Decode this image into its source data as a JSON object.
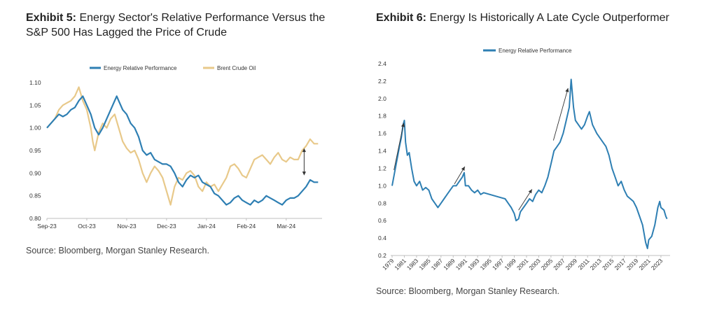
{
  "colors": {
    "energy": "#2e7fb3",
    "brent": "#e8c98a",
    "axis": "#bfbfbf",
    "arrow": "#333333"
  },
  "exhibit5": {
    "title_bold": "Exhibit 5:",
    "title_rest": " Energy Sector's Relative Performance Versus the S&P 500 Has Lagged the Price of Crude",
    "source": "Source: Bloomberg, Morgan Stanley Research."
  },
  "exhibit6": {
    "title_bold": "Exhibit 6:",
    "title_rest": " Energy Is Historically A Late Cycle Outperformer",
    "source": "Source: Bloomberg, Morgan Stanley Research."
  },
  "chart_data": [
    {
      "type": "line",
      "ylim": [
        0.8,
        1.1
      ],
      "yticks": [
        "0.80",
        "0.85",
        "0.90",
        "0.95",
        "1.00",
        "1.05",
        "1.10"
      ],
      "xticks": [
        "Sep-23",
        "Oct-23",
        "Nov-23",
        "Dec-23",
        "Jan-24",
        "Feb-24",
        "Mar-24"
      ],
      "xlim_months": [
        0,
        6.9
      ],
      "legend": "top",
      "series": [
        {
          "name": "Energy Relative Performance",
          "color": "#2e7fb3",
          "points": [
            [
              0,
              1.0
            ],
            [
              0.1,
              1.01
            ],
            [
              0.2,
              1.02
            ],
            [
              0.3,
              1.03
            ],
            [
              0.4,
              1.025
            ],
            [
              0.5,
              1.03
            ],
            [
              0.6,
              1.04
            ],
            [
              0.7,
              1.045
            ],
            [
              0.8,
              1.06
            ],
            [
              0.9,
              1.07
            ],
            [
              1.0,
              1.05
            ],
            [
              1.1,
              1.03
            ],
            [
              1.2,
              1.0
            ],
            [
              1.3,
              0.985
            ],
            [
              1.4,
              1.0
            ],
            [
              1.5,
              1.02
            ],
            [
              1.6,
              1.04
            ],
            [
              1.7,
              1.06
            ],
            [
              1.75,
              1.07
            ],
            [
              1.8,
              1.06
            ],
            [
              1.9,
              1.04
            ],
            [
              2.0,
              1.03
            ],
            [
              2.1,
              1.01
            ],
            [
              2.2,
              1.0
            ],
            [
              2.3,
              0.98
            ],
            [
              2.4,
              0.95
            ],
            [
              2.5,
              0.94
            ],
            [
              2.6,
              0.945
            ],
            [
              2.7,
              0.93
            ],
            [
              2.8,
              0.925
            ],
            [
              2.9,
              0.92
            ],
            [
              3.0,
              0.92
            ],
            [
              3.1,
              0.915
            ],
            [
              3.2,
              0.9
            ],
            [
              3.3,
              0.88
            ],
            [
              3.4,
              0.87
            ],
            [
              3.5,
              0.885
            ],
            [
              3.6,
              0.895
            ],
            [
              3.7,
              0.89
            ],
            [
              3.8,
              0.895
            ],
            [
              3.9,
              0.88
            ],
            [
              4.0,
              0.875
            ],
            [
              4.1,
              0.87
            ],
            [
              4.2,
              0.855
            ],
            [
              4.3,
              0.85
            ],
            [
              4.4,
              0.84
            ],
            [
              4.5,
              0.83
            ],
            [
              4.6,
              0.835
            ],
            [
              4.7,
              0.845
            ],
            [
              4.8,
              0.85
            ],
            [
              4.9,
              0.84
            ],
            [
              5.0,
              0.835
            ],
            [
              5.1,
              0.83
            ],
            [
              5.2,
              0.84
            ],
            [
              5.3,
              0.835
            ],
            [
              5.4,
              0.84
            ],
            [
              5.5,
              0.85
            ],
            [
              5.6,
              0.845
            ],
            [
              5.7,
              0.84
            ],
            [
              5.8,
              0.835
            ],
            [
              5.9,
              0.83
            ],
            [
              6.0,
              0.84
            ],
            [
              6.1,
              0.845
            ],
            [
              6.2,
              0.845
            ],
            [
              6.3,
              0.85
            ],
            [
              6.4,
              0.86
            ],
            [
              6.5,
              0.87
            ],
            [
              6.6,
              0.885
            ],
            [
              6.7,
              0.88
            ],
            [
              6.8,
              0.88
            ]
          ]
        },
        {
          "name": "Brent Crude Oil",
          "color": "#e8c98a",
          "points": [
            [
              0,
              1.0
            ],
            [
              0.1,
              1.01
            ],
            [
              0.2,
              1.02
            ],
            [
              0.3,
              1.04
            ],
            [
              0.4,
              1.05
            ],
            [
              0.5,
              1.055
            ],
            [
              0.6,
              1.06
            ],
            [
              0.7,
              1.07
            ],
            [
              0.8,
              1.09
            ],
            [
              0.9,
              1.06
            ],
            [
              1.0,
              1.04
            ],
            [
              1.1,
              1.0
            ],
            [
              1.15,
              0.97
            ],
            [
              1.2,
              0.95
            ],
            [
              1.3,
              0.99
            ],
            [
              1.4,
              1.01
            ],
            [
              1.5,
              1.0
            ],
            [
              1.6,
              1.02
            ],
            [
              1.7,
              1.03
            ],
            [
              1.8,
              1.0
            ],
            [
              1.9,
              0.97
            ],
            [
              2.0,
              0.955
            ],
            [
              2.1,
              0.945
            ],
            [
              2.2,
              0.95
            ],
            [
              2.3,
              0.93
            ],
            [
              2.4,
              0.9
            ],
            [
              2.5,
              0.88
            ],
            [
              2.6,
              0.9
            ],
            [
              2.7,
              0.915
            ],
            [
              2.8,
              0.905
            ],
            [
              2.9,
              0.89
            ],
            [
              3.0,
              0.86
            ],
            [
              3.1,
              0.83
            ],
            [
              3.2,
              0.87
            ],
            [
              3.3,
              0.89
            ],
            [
              3.4,
              0.885
            ],
            [
              3.5,
              0.9
            ],
            [
              3.6,
              0.905
            ],
            [
              3.7,
              0.895
            ],
            [
              3.8,
              0.87
            ],
            [
              3.9,
              0.86
            ],
            [
              4.0,
              0.88
            ],
            [
              4.1,
              0.87
            ],
            [
              4.2,
              0.875
            ],
            [
              4.3,
              0.86
            ],
            [
              4.4,
              0.875
            ],
            [
              4.5,
              0.89
            ],
            [
              4.6,
              0.915
            ],
            [
              4.7,
              0.92
            ],
            [
              4.8,
              0.91
            ],
            [
              4.9,
              0.895
            ],
            [
              5.0,
              0.89
            ],
            [
              5.1,
              0.91
            ],
            [
              5.2,
              0.93
            ],
            [
              5.3,
              0.935
            ],
            [
              5.4,
              0.94
            ],
            [
              5.5,
              0.93
            ],
            [
              5.6,
              0.92
            ],
            [
              5.7,
              0.935
            ],
            [
              5.8,
              0.945
            ],
            [
              5.9,
              0.93
            ],
            [
              6.0,
              0.925
            ],
            [
              6.1,
              0.935
            ],
            [
              6.2,
              0.93
            ],
            [
              6.3,
              0.93
            ],
            [
              6.4,
              0.95
            ],
            [
              6.5,
              0.96
            ],
            [
              6.6,
              0.975
            ],
            [
              6.7,
              0.965
            ],
            [
              6.8,
              0.965
            ]
          ]
        }
      ],
      "annotation": {
        "type": "double-arrow",
        "x_month": 6.45,
        "y_from": 0.895,
        "y_to": 0.955
      }
    },
    {
      "type": "line",
      "ylim": [
        0.2,
        2.4
      ],
      "yticks": [
        "0.2",
        "0.4",
        "0.6",
        "0.8",
        "1.0",
        "1.2",
        "1.4",
        "1.6",
        "1.8",
        "2.0",
        "2.2",
        "2.4"
      ],
      "xlim": [
        1979,
        2024.5
      ],
      "xticks": [
        "1979",
        "1981",
        "1983",
        "1985",
        "1987",
        "1989",
        "1991",
        "1993",
        "1995",
        "1997",
        "1999",
        "2001",
        "2003",
        "2005",
        "2007",
        "2009",
        "2011",
        "2013",
        "2015",
        "2017",
        "2019",
        "2021",
        "2023"
      ],
      "legend": "top",
      "series": [
        {
          "name": "Energy Relative Performance",
          "color": "#2e7fb3",
          "points": [
            [
              1979,
              1.0
            ],
            [
              1979.4,
              1.15
            ],
            [
              1979.8,
              1.3
            ],
            [
              1980.2,
              1.45
            ],
            [
              1980.5,
              1.55
            ],
            [
              1980.8,
              1.7
            ],
            [
              1981.0,
              1.75
            ],
            [
              1981.2,
              1.5
            ],
            [
              1981.5,
              1.35
            ],
            [
              1981.8,
              1.38
            ],
            [
              1982.2,
              1.2
            ],
            [
              1982.6,
              1.05
            ],
            [
              1983.0,
              1.0
            ],
            [
              1983.5,
              1.05
            ],
            [
              1984.0,
              0.95
            ],
            [
              1984.5,
              0.98
            ],
            [
              1985.0,
              0.95
            ],
            [
              1985.5,
              0.85
            ],
            [
              1986.0,
              0.8
            ],
            [
              1986.5,
              0.75
            ],
            [
              1987.0,
              0.8
            ],
            [
              1987.5,
              0.85
            ],
            [
              1988.0,
              0.9
            ],
            [
              1988.5,
              0.95
            ],
            [
              1989.0,
              1.0
            ],
            [
              1989.5,
              1.0
            ],
            [
              1990.0,
              1.05
            ],
            [
              1990.5,
              1.1
            ],
            [
              1990.8,
              1.15
            ],
            [
              1991.0,
              1.0
            ],
            [
              1991.5,
              1.0
            ],
            [
              1992.0,
              0.95
            ],
            [
              1992.5,
              0.92
            ],
            [
              1993.0,
              0.95
            ],
            [
              1993.5,
              0.9
            ],
            [
              1994.0,
              0.92
            ],
            [
              1995.0,
              0.9
            ],
            [
              1996.0,
              0.88
            ],
            [
              1997.0,
              0.86
            ],
            [
              1997.5,
              0.85
            ],
            [
              1998.0,
              0.8
            ],
            [
              1998.5,
              0.75
            ],
            [
              1999.0,
              0.68
            ],
            [
              1999.3,
              0.6
            ],
            [
              1999.7,
              0.62
            ],
            [
              2000.0,
              0.7
            ],
            [
              2000.5,
              0.75
            ],
            [
              2001.0,
              0.8
            ],
            [
              2001.5,
              0.85
            ],
            [
              2002.0,
              0.82
            ],
            [
              2002.5,
              0.9
            ],
            [
              2003.0,
              0.95
            ],
            [
              2003.5,
              0.92
            ],
            [
              2004.0,
              1.0
            ],
            [
              2004.5,
              1.1
            ],
            [
              2005.0,
              1.25
            ],
            [
              2005.5,
              1.4
            ],
            [
              2006.0,
              1.45
            ],
            [
              2006.5,
              1.5
            ],
            [
              2007.0,
              1.6
            ],
            [
              2007.5,
              1.75
            ],
            [
              2008.0,
              1.9
            ],
            [
              2008.3,
              2.22
            ],
            [
              2008.7,
              1.9
            ],
            [
              2009.0,
              1.75
            ],
            [
              2009.5,
              1.7
            ],
            [
              2010.0,
              1.65
            ],
            [
              2010.5,
              1.7
            ],
            [
              2011.0,
              1.8
            ],
            [
              2011.3,
              1.85
            ],
            [
              2011.8,
              1.7
            ],
            [
              2012.5,
              1.6
            ],
            [
              2013.0,
              1.55
            ],
            [
              2013.5,
              1.5
            ],
            [
              2014.0,
              1.45
            ],
            [
              2014.5,
              1.35
            ],
            [
              2015.0,
              1.2
            ],
            [
              2015.5,
              1.1
            ],
            [
              2016.0,
              1.0
            ],
            [
              2016.5,
              1.05
            ],
            [
              2017.0,
              0.95
            ],
            [
              2017.5,
              0.88
            ],
            [
              2018.0,
              0.85
            ],
            [
              2018.5,
              0.82
            ],
            [
              2019.0,
              0.75
            ],
            [
              2019.5,
              0.65
            ],
            [
              2020.0,
              0.55
            ],
            [
              2020.5,
              0.35
            ],
            [
              2020.8,
              0.28
            ],
            [
              2021.0,
              0.38
            ],
            [
              2021.5,
              0.42
            ],
            [
              2022.0,
              0.55
            ],
            [
              2022.5,
              0.75
            ],
            [
              2022.8,
              0.82
            ],
            [
              2023.0,
              0.75
            ],
            [
              2023.5,
              0.72
            ],
            [
              2023.8,
              0.65
            ],
            [
              2024.0,
              0.62
            ]
          ]
        }
      ],
      "annotations": [
        {
          "type": "arrow",
          "from": [
            1979.3,
            1.18
          ],
          "to": [
            1980.9,
            1.72
          ]
        },
        {
          "type": "arrow",
          "from": [
            1989.2,
            1.02
          ],
          "to": [
            1990.9,
            1.22
          ]
        },
        {
          "type": "arrow",
          "from": [
            1999.7,
            0.72
          ],
          "to": [
            2001.9,
            0.96
          ]
        },
        {
          "type": "arrow",
          "from": [
            2005.4,
            1.52
          ],
          "to": [
            2007.8,
            2.12
          ]
        }
      ]
    }
  ]
}
